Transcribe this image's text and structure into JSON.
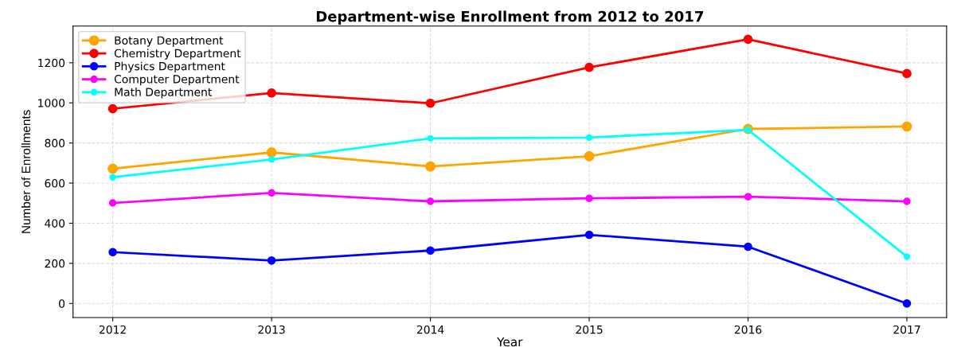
{
  "chart_data": {
    "type": "line",
    "title": "Department-wise Enrollment from 2012 to 2017",
    "xlabel": "Year",
    "ylabel": "Number of Enrollments",
    "x": [
      2012,
      2013,
      2014,
      2015,
      2016,
      2017
    ],
    "series": [
      {
        "name": "Botany Department",
        "color": "#ffa500",
        "values": [
          672,
          753,
          683,
          734,
          870,
          882
        ]
      },
      {
        "name": "Chemistry Department",
        "color": "#ff0000",
        "values": [
          971,
          1049,
          998,
          1177,
          1317,
          1146
        ]
      },
      {
        "name": "Physics Department",
        "color": "#0000ff",
        "values": [
          256,
          214,
          264,
          342,
          283,
          0
        ]
      },
      {
        "name": "Computer Department",
        "color": "#ff00ff",
        "values": [
          501,
          551,
          509,
          524,
          532,
          509
        ]
      },
      {
        "name": "Math Department",
        "color": "#00ffff",
        "values": [
          629,
          718,
          823,
          827,
          866,
          233
        ]
      }
    ],
    "xlim": [
      2011.75,
      2017.25
    ],
    "xticks": [
      2012,
      2013,
      2014,
      2015,
      2016,
      2017
    ],
    "ylim": [
      -70,
      1383
    ],
    "yticks": [
      0,
      200,
      400,
      600,
      800,
      1000,
      1200
    ],
    "grid": true,
    "legend": "top left",
    "marker": "circle",
    "line_style": "solid"
  }
}
